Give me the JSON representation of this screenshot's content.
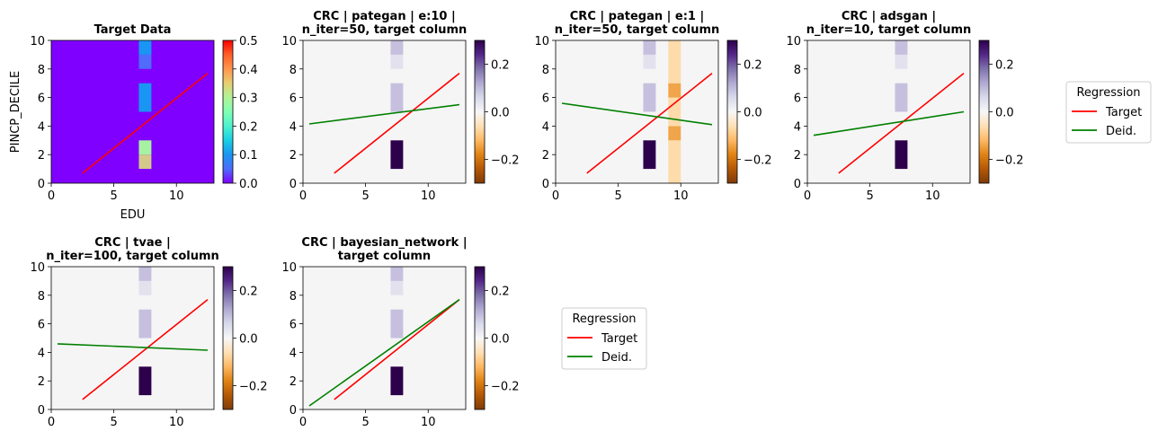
{
  "chart_data": [
    {
      "type": "heatmap",
      "title": "Target Data",
      "xlabel": "EDU",
      "ylabel": "PINCP_DECILE",
      "xlim": [
        0,
        13
      ],
      "ylim": [
        0,
        10
      ],
      "xticks": [
        "0",
        "5",
        "10"
      ],
      "yticks": [
        "0",
        "2",
        "4",
        "6",
        "8",
        "10"
      ],
      "colormap": "rainbow",
      "colorbar": {
        "range": [
          0.0,
          0.5
        ],
        "ticks": [
          "0.0",
          "0.1",
          "0.2",
          "0.3",
          "0.4",
          "0.5"
        ]
      },
      "background_color": "#8000ff",
      "cells": [
        {
          "x0": 7,
          "x1": 8,
          "y0": 1,
          "y1": 2,
          "value": 0.33,
          "color": "#d4c98a"
        },
        {
          "x0": 7,
          "x1": 8,
          "y0": 2,
          "y1": 3,
          "value": 0.27,
          "color": "#a6f2a2"
        },
        {
          "x0": 7,
          "x1": 8,
          "y0": 5,
          "y1": 7,
          "value": 0.18,
          "color": "#1996f3"
        },
        {
          "x0": 7,
          "x1": 8,
          "y0": 8,
          "y1": 9,
          "value": 0.07,
          "color": "#4f6cfb"
        },
        {
          "x0": 7,
          "x1": 8,
          "y0": 9,
          "y1": 10,
          "value": 0.18,
          "color": "#1996f3"
        }
      ],
      "lines": [
        {
          "x": [
            2.5,
            12.5
          ],
          "y": [
            0.7,
            7.7
          ],
          "color": "#ff0000"
        }
      ]
    },
    {
      "type": "heatmap",
      "title": "CRC | pategan | e:10 |\nn_iter=50, target column",
      "xlim": [
        0,
        13
      ],
      "ylim": [
        0,
        10
      ],
      "xticks": [
        "0",
        "5",
        "10"
      ],
      "yticks": [
        "0",
        "2",
        "4",
        "6",
        "8",
        "10"
      ],
      "colormap": "PuOr",
      "colorbar": {
        "range": [
          -0.3,
          0.3
        ],
        "ticks": [
          "−0.2",
          "0.0",
          "0.2"
        ]
      },
      "background_color": "#f5f5f5",
      "cells": [
        {
          "x0": 7,
          "x1": 8,
          "y0": 1,
          "y1": 3,
          "value": 0.3,
          "color": "#2d004b"
        },
        {
          "x0": 7,
          "x1": 8,
          "y0": 5,
          "y1": 7,
          "value": 0.05,
          "color": "#c6c0de"
        },
        {
          "x0": 7,
          "x1": 8,
          "y0": 8,
          "y1": 9,
          "value": 0.02,
          "color": "#e4e1ef"
        },
        {
          "x0": 7,
          "x1": 8,
          "y0": 9,
          "y1": 10,
          "value": 0.05,
          "color": "#c6c0de"
        }
      ],
      "lines": [
        {
          "x": [
            2.5,
            12.5
          ],
          "y": [
            0.7,
            7.7
          ],
          "color": "#ff0000"
        },
        {
          "x": [
            0.5,
            12.5
          ],
          "y": [
            4.15,
            5.5
          ],
          "color": "#008000"
        }
      ]
    },
    {
      "type": "heatmap",
      "title": "CRC | pategan | e:1 |\nn_iter=50, target column",
      "xlim": [
        0,
        13
      ],
      "ylim": [
        0,
        10
      ],
      "xticks": [
        "0",
        "5",
        "10"
      ],
      "yticks": [
        "0",
        "2",
        "4",
        "6",
        "8",
        "10"
      ],
      "colormap": "PuOr",
      "colorbar": {
        "range": [
          -0.3,
          0.3
        ],
        "ticks": [
          "−0.2",
          "0.0",
          "0.2"
        ]
      },
      "background_color": "#f5f5f5",
      "cells": [
        {
          "x0": 7,
          "x1": 8,
          "y0": 1,
          "y1": 3,
          "value": 0.3,
          "color": "#2d004b"
        },
        {
          "x0": 7,
          "x1": 8,
          "y0": 5,
          "y1": 7,
          "value": 0.05,
          "color": "#c6c0de"
        },
        {
          "x0": 7,
          "x1": 8,
          "y0": 8,
          "y1": 9,
          "value": 0.02,
          "color": "#e4e1ef"
        },
        {
          "x0": 7,
          "x1": 8,
          "y0": 9,
          "y1": 10,
          "value": 0.05,
          "color": "#c6c0de"
        },
        {
          "x0": 9,
          "x1": 10,
          "y0": 0,
          "y1": 1,
          "value": -0.07,
          "color": "#fddbab"
        },
        {
          "x0": 9,
          "x1": 10,
          "y0": 1,
          "y1": 3,
          "value": -0.07,
          "color": "#fddbab"
        },
        {
          "x0": 9,
          "x1": 10,
          "y0": 3,
          "y1": 4,
          "value": -0.13,
          "color": "#f0a54a"
        },
        {
          "x0": 9,
          "x1": 10,
          "y0": 4,
          "y1": 6,
          "value": -0.07,
          "color": "#fddbab"
        },
        {
          "x0": 9,
          "x1": 10,
          "y0": 6,
          "y1": 7,
          "value": -0.13,
          "color": "#f0a54a"
        },
        {
          "x0": 9,
          "x1": 10,
          "y0": 7,
          "y1": 10,
          "value": -0.07,
          "color": "#fddbab"
        }
      ],
      "lines": [
        {
          "x": [
            2.5,
            12.5
          ],
          "y": [
            0.7,
            7.7
          ],
          "color": "#ff0000"
        },
        {
          "x": [
            0.5,
            12.5
          ],
          "y": [
            5.6,
            4.1
          ],
          "color": "#008000"
        }
      ]
    },
    {
      "type": "heatmap",
      "title": "CRC | adsgan |\nn_iter=10, target column",
      "xlim": [
        0,
        13
      ],
      "ylim": [
        0,
        10
      ],
      "xticks": [
        "0",
        "5",
        "10"
      ],
      "yticks": [
        "0",
        "2",
        "4",
        "6",
        "8",
        "10"
      ],
      "colormap": "PuOr",
      "colorbar": {
        "range": [
          -0.3,
          0.3
        ],
        "ticks": [
          "−0.2",
          "0.0",
          "0.2"
        ]
      },
      "background_color": "#f5f5f5",
      "cells": [
        {
          "x0": 7,
          "x1": 8,
          "y0": 1,
          "y1": 3,
          "value": 0.3,
          "color": "#2d004b"
        },
        {
          "x0": 7,
          "x1": 8,
          "y0": 5,
          "y1": 7,
          "value": 0.05,
          "color": "#c6c0de"
        },
        {
          "x0": 7,
          "x1": 8,
          "y0": 8,
          "y1": 9,
          "value": 0.02,
          "color": "#e4e1ef"
        },
        {
          "x0": 7,
          "x1": 8,
          "y0": 9,
          "y1": 10,
          "value": 0.05,
          "color": "#c6c0de"
        }
      ],
      "lines": [
        {
          "x": [
            2.5,
            12.5
          ],
          "y": [
            0.7,
            7.7
          ],
          "color": "#ff0000"
        },
        {
          "x": [
            0.5,
            12.5
          ],
          "y": [
            3.35,
            5.0
          ],
          "color": "#008000"
        }
      ]
    },
    {
      "type": "heatmap",
      "title": "CRC | tvae |\nn_iter=100, target column",
      "xlim": [
        0,
        13
      ],
      "ylim": [
        0,
        10
      ],
      "xticks": [
        "0",
        "5",
        "10"
      ],
      "yticks": [
        "0",
        "2",
        "4",
        "6",
        "8",
        "10"
      ],
      "colormap": "PuOr",
      "colorbar": {
        "range": [
          -0.3,
          0.3
        ],
        "ticks": [
          "−0.2",
          "0.0",
          "0.2"
        ]
      },
      "background_color": "#f5f5f5",
      "cells": [
        {
          "x0": 7,
          "x1": 8,
          "y0": 1,
          "y1": 3,
          "value": 0.3,
          "color": "#2d004b"
        },
        {
          "x0": 7,
          "x1": 8,
          "y0": 5,
          "y1": 7,
          "value": 0.05,
          "color": "#c6c0de"
        },
        {
          "x0": 7,
          "x1": 8,
          "y0": 8,
          "y1": 9,
          "value": 0.02,
          "color": "#e4e1ef"
        },
        {
          "x0": 7,
          "x1": 8,
          "y0": 9,
          "y1": 10,
          "value": 0.05,
          "color": "#c6c0de"
        }
      ],
      "lines": [
        {
          "x": [
            2.5,
            12.5
          ],
          "y": [
            0.7,
            7.7
          ],
          "color": "#ff0000"
        },
        {
          "x": [
            0.5,
            12.5
          ],
          "y": [
            4.6,
            4.15
          ],
          "color": "#008000"
        }
      ]
    },
    {
      "type": "heatmap",
      "title": "CRC | bayesian_network |\ntarget column",
      "xlim": [
        0,
        13
      ],
      "ylim": [
        0,
        10
      ],
      "xticks": [
        "0",
        "5",
        "10"
      ],
      "yticks": [
        "0",
        "2",
        "4",
        "6",
        "8",
        "10"
      ],
      "colormap": "PuOr",
      "colorbar": {
        "range": [
          -0.3,
          0.3
        ],
        "ticks": [
          "−0.2",
          "0.0",
          "0.2"
        ]
      },
      "background_color": "#f5f5f5",
      "cells": [
        {
          "x0": 7,
          "x1": 8,
          "y0": 1,
          "y1": 3,
          "value": 0.3,
          "color": "#2d004b"
        },
        {
          "x0": 7,
          "x1": 8,
          "y0": 5,
          "y1": 7,
          "value": 0.05,
          "color": "#c6c0de"
        },
        {
          "x0": 7,
          "x1": 8,
          "y0": 8,
          "y1": 9,
          "value": 0.02,
          "color": "#e4e1ef"
        },
        {
          "x0": 7,
          "x1": 8,
          "y0": 9,
          "y1": 10,
          "value": 0.05,
          "color": "#c6c0de"
        }
      ],
      "lines": [
        {
          "x": [
            2.5,
            12.5
          ],
          "y": [
            0.7,
            7.7
          ],
          "color": "#ff0000"
        },
        {
          "x": [
            0.5,
            12.5
          ],
          "y": [
            0.25,
            7.7
          ],
          "color": "#008000"
        }
      ]
    }
  ],
  "legends": [
    {
      "title": "Regression",
      "placement": "right of top row",
      "entries": [
        {
          "label": "Target",
          "color": "#ff0000"
        },
        {
          "label": "Deid.",
          "color": "#008000"
        }
      ]
    },
    {
      "title": "Regression",
      "placement": "right of bottom row",
      "entries": [
        {
          "label": "Target",
          "color": "#ff0000"
        },
        {
          "label": "Deid.",
          "color": "#008000"
        }
      ]
    }
  ],
  "colorbar_gradients": {
    "rainbow": [
      "#8000ff",
      "#4f6cfb",
      "#1996f3",
      "#19cfe3",
      "#4df3ce",
      "#80ffb4",
      "#b2f396",
      "#e6cf73",
      "#ff964f",
      "#ff6027",
      "#ff0000"
    ],
    "PuOr": [
      "#7f3b08",
      "#b35806",
      "#e08214",
      "#fdb863",
      "#fee0b6",
      "#f7f7f7",
      "#d8daeb",
      "#b2abd2",
      "#8073ac",
      "#542788",
      "#2d004b"
    ]
  }
}
